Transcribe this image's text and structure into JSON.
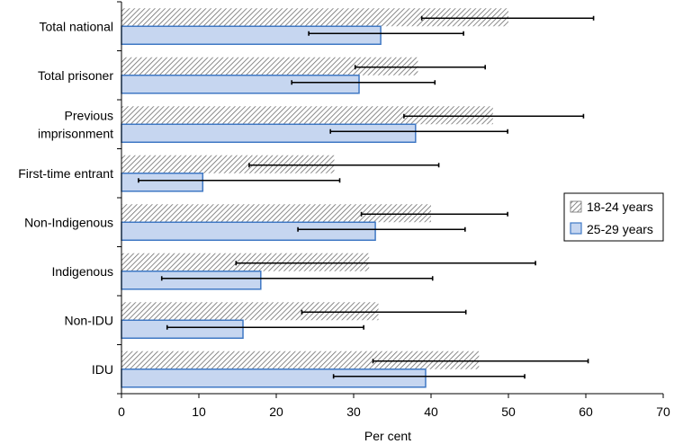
{
  "chart_data": {
    "type": "bar",
    "orientation": "horizontal",
    "title": "",
    "xlabel": "Per cent",
    "ylabel": "",
    "xlim": [
      0,
      70
    ],
    "xticks": [
      0,
      10,
      20,
      30,
      40,
      50,
      60,
      70
    ],
    "categories": [
      [
        "Total national"
      ],
      [
        "Total prisoner"
      ],
      [
        "Previous",
        "imprisonment"
      ],
      [
        "First-time entrant"
      ],
      [
        "Non-Indigenous"
      ],
      [
        "Indigenous"
      ],
      [
        "Non-IDU"
      ],
      [
        "IDU"
      ]
    ],
    "series": [
      {
        "name": "18-24 years",
        "style": "hatched",
        "values": [
          50,
          38.3,
          48,
          27.5,
          40,
          32,
          33.2,
          46.2
        ],
        "ci_low": [
          38.8,
          30.2,
          36.5,
          16.5,
          31,
          14.8,
          23.3,
          32.5
        ],
        "ci_high": [
          61,
          47,
          59.7,
          41,
          49.9,
          53.5,
          44.5,
          60.3
        ]
      },
      {
        "name": "25-29 years",
        "style": "solid",
        "values": [
          33.5,
          30.7,
          38,
          10.5,
          32.8,
          18,
          15.7,
          39.3
        ],
        "ci_low": [
          24.2,
          22,
          27,
          2.2,
          22.8,
          5.2,
          5.9,
          27.4
        ],
        "ci_high": [
          44.2,
          40.5,
          49.9,
          28.2,
          44.4,
          40.2,
          31.3,
          52.1
        ]
      }
    ],
    "legend": "right",
    "colors": {
      "solid_fill": "#c6d6f0",
      "solid_stroke": "#3f78c4",
      "hatch_line": "#6e6e6e",
      "error_bar": "#000000"
    }
  }
}
